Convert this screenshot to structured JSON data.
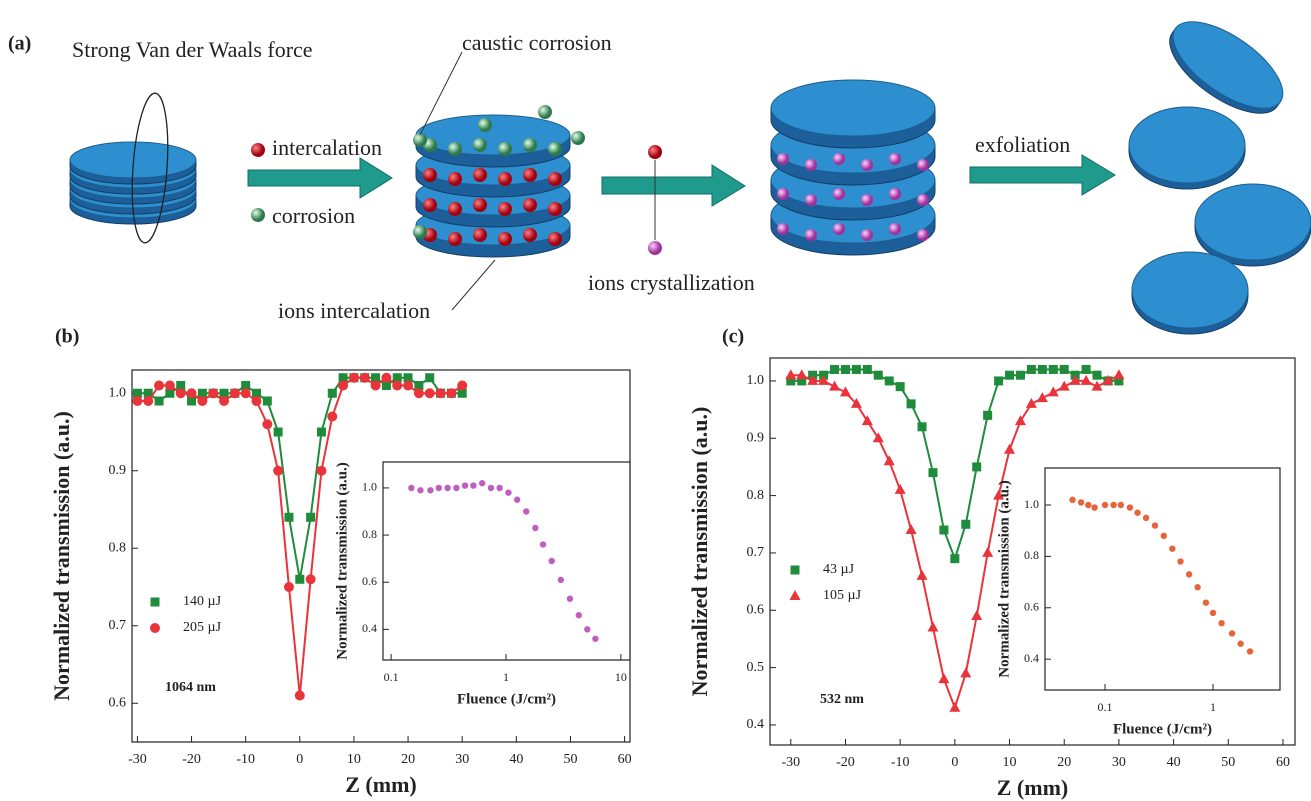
{
  "panel_a": {
    "label": "(a)",
    "texts": [
      "Strong Van der Waals force",
      "intercalation",
      "corrosion",
      "caustic corrosion",
      "ions  intercalation",
      "ions crystallization",
      "exfoliation"
    ]
  },
  "chart_data": [
    {
      "type": "scatter",
      "panel_label": "(b)",
      "annotation": "1064 nm",
      "x_label": "Z (mm)",
      "y_label": "Normalized transmission (a.u.)",
      "line": true,
      "xlim": [
        -31,
        61
      ],
      "ylim": [
        0.55,
        1.03
      ],
      "xticks": [
        -30,
        -20,
        -10,
        0,
        10,
        20,
        30,
        40,
        50,
        60
      ],
      "yticks": [
        0.6,
        0.7,
        0.8,
        0.9,
        {
          "value": 1,
          "label": "1.0"
        }
      ],
      "x": [
        -30,
        -28,
        -26,
        -24,
        -22,
        -20,
        -18,
        -16,
        -14,
        -12,
        -10,
        -8,
        -6,
        -4,
        -2,
        0,
        2,
        4,
        6,
        8,
        10,
        12,
        14,
        16,
        18,
        20,
        22,
        24,
        26,
        28,
        30
      ],
      "series": [
        {
          "name": "140 µJ",
          "color": "#1e8c3a",
          "marker": "square",
          "values": [
            1.0,
            1.0,
            0.99,
            1.0,
            1.01,
            0.99,
            1.0,
            1.0,
            1.0,
            1.0,
            1.01,
            1.0,
            0.99,
            0.95,
            0.84,
            0.76,
            0.84,
            0.95,
            1.0,
            1.02,
            1.02,
            1.02,
            1.02,
            1.01,
            1.02,
            1.02,
            1.01,
            1.02,
            1.0,
            1.0,
            1.0
          ]
        },
        {
          "name": "205 µJ",
          "color": "#e8343a",
          "marker": "circle",
          "values": [
            0.99,
            0.99,
            1.01,
            1.01,
            1.0,
            1.0,
            0.99,
            1.0,
            0.99,
            1.0,
            1.0,
            0.99,
            0.96,
            0.9,
            0.75,
            0.61,
            0.76,
            0.9,
            0.97,
            1.01,
            1.02,
            1.02,
            1.01,
            1.02,
            1.01,
            1.01,
            1.0,
            1.0,
            1.0,
            1.0,
            1.01
          ]
        }
      ]
    },
    {
      "type": "scatter",
      "x_label": "Fluence (J/cm²)",
      "y_label": "Normalized transmission (a.u.)",
      "xscale": "log",
      "xlim": [
        0.085,
        12
      ],
      "ylim": [
        0.27,
        1.11
      ],
      "xticks": [
        0.1,
        1,
        10
      ],
      "yticks": [
        0.4,
        0.6,
        0.8,
        {
          "value": 1,
          "label": "1.0"
        }
      ],
      "x": [
        0.15,
        0.18,
        0.22,
        0.26,
        0.31,
        0.37,
        0.44,
        0.52,
        0.62,
        0.74,
        0.88,
        1.05,
        1.25,
        1.5,
        1.8,
        2.1,
        2.5,
        3.0,
        3.6,
        4.3,
        5.1,
        6.0
      ],
      "series": [
        {
          "color": "#c05ec0",
          "marker": "dot",
          "values": [
            1.0,
            0.99,
            0.99,
            1.0,
            1.0,
            1.0,
            1.01,
            1.01,
            1.02,
            1.0,
            1.0,
            0.98,
            0.95,
            0.9,
            0.83,
            0.76,
            0.69,
            0.61,
            0.53,
            0.46,
            0.4,
            0.36
          ]
        }
      ]
    },
    {
      "type": "scatter",
      "panel_label": "(c)",
      "annotation": "532 nm",
      "x_label": "Z (mm)",
      "y_label": "Normalized transmission (a.u.)",
      "line": true,
      "xlim": [
        -33.8,
        62.2
      ],
      "ylim": [
        0.365,
        1.04
      ],
      "xticks": [
        -30,
        -20,
        -10,
        0,
        10,
        20,
        30,
        40,
        50,
        60
      ],
      "yticks": [
        0.4,
        0.5,
        0.6,
        0.7,
        0.8,
        0.9,
        {
          "value": 1,
          "label": "1.0"
        }
      ],
      "x": [
        -30,
        -28,
        -26,
        -24,
        -22,
        -20,
        -18,
        -16,
        -14,
        -12,
        -10,
        -8,
        -6,
        -4,
        -2,
        0,
        2,
        4,
        6,
        8,
        10,
        12,
        14,
        16,
        18,
        20,
        22,
        24,
        26,
        28,
        30
      ],
      "series": [
        {
          "name": "43  µJ",
          "color": "#1e8c3a",
          "marker": "square",
          "values": [
            1.0,
            1.0,
            1.01,
            1.01,
            1.02,
            1.02,
            1.02,
            1.02,
            1.01,
            1.0,
            0.99,
            0.96,
            0.92,
            0.84,
            0.74,
            0.69,
            0.75,
            0.85,
            0.94,
            1.0,
            1.01,
            1.01,
            1.02,
            1.02,
            1.02,
            1.02,
            1.01,
            1.02,
            1.01,
            1.0,
            1.0
          ]
        },
        {
          "name": "105 µJ",
          "color": "#e8343a",
          "marker": "triangle",
          "values": [
            1.01,
            1.01,
            1.0,
            1.0,
            0.99,
            0.98,
            0.96,
            0.93,
            0.9,
            0.86,
            0.81,
            0.74,
            0.66,
            0.57,
            0.48,
            0.43,
            0.49,
            0.59,
            0.7,
            0.8,
            0.88,
            0.93,
            0.96,
            0.97,
            0.98,
            0.99,
            1.0,
            1.0,
            0.99,
            1.0,
            1.01
          ]
        }
      ]
    },
    {
      "type": "scatter",
      "x_label": "Fluence (J/cm²)",
      "y_label": "Normalized transmission (a.u.)",
      "xscale": "log",
      "xlim": [
        0.0278,
        4.17
      ],
      "ylim": [
        0.28,
        1.144
      ],
      "xticks": [
        0.1,
        1
      ],
      "yticks": [
        0.4,
        0.6,
        0.8,
        {
          "value": 1,
          "label": "1.0"
        }
      ],
      "x": [
        0.05,
        0.06,
        0.07,
        0.08,
        0.1,
        0.12,
        0.14,
        0.17,
        0.2,
        0.24,
        0.29,
        0.35,
        0.42,
        0.5,
        0.6,
        0.72,
        0.86,
        1.0,
        1.2,
        1.5,
        1.8,
        2.2
      ],
      "series": [
        {
          "color": "#e8623a",
          "marker": "dot",
          "values": [
            1.02,
            1.01,
            1.0,
            0.99,
            1.0,
            1.0,
            1.0,
            0.99,
            0.97,
            0.95,
            0.92,
            0.88,
            0.83,
            0.78,
            0.73,
            0.68,
            0.62,
            0.58,
            0.54,
            0.5,
            0.46,
            0.43
          ]
        }
      ]
    }
  ]
}
